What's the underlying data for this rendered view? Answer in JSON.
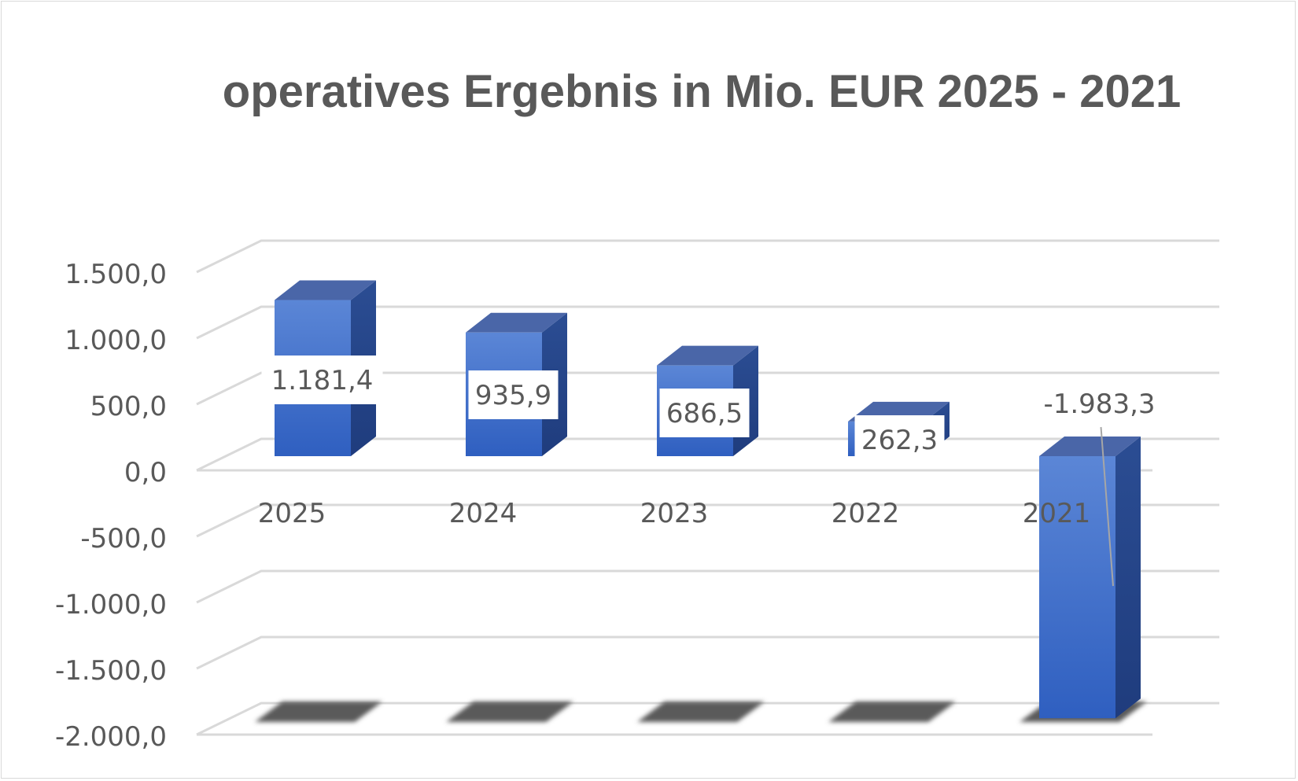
{
  "chart_data": {
    "type": "bar",
    "title": "operatives Ergebnis in Mio. EUR 2025 - 2021",
    "categories": [
      "2025",
      "2024",
      "2023",
      "2022",
      "2021"
    ],
    "values": [
      1181.4,
      935.9,
      686.5,
      262.3,
      -1983.3
    ],
    "data_labels": [
      "1.181,4",
      "935,9",
      "686,5",
      "262,3",
      "-1.983,3"
    ],
    "y_ticks": [
      1500,
      1000,
      500,
      0,
      -500,
      -1000,
      -1500,
      -2000
    ],
    "y_tick_labels": [
      "1.500,0",
      "1.000,0",
      "500,0",
      "0,0",
      "-500,0",
      "-1.000,0",
      "-1.500,0",
      "-2.000,0"
    ],
    "ylim": [
      -2000,
      1500
    ],
    "xlabel": "",
    "ylabel": "",
    "grid": true,
    "style": "3d-column",
    "colors": {
      "bar_front_top": "#5b86d6",
      "bar_front_bottom": "#2f5fc0",
      "bar_side": "#25458a",
      "bar_top": "#4a66a8",
      "shadow": "#5a5a5a",
      "grid": "#d9d9d9",
      "text": "#595959"
    }
  }
}
